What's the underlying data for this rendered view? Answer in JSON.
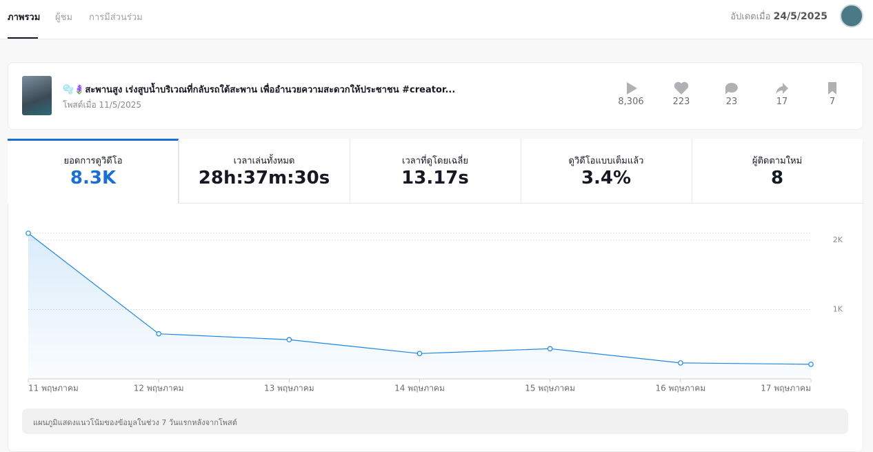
{
  "tabs": [
    "ภาพรวม",
    "ผู้ชม",
    "การมีส่วนร่วม"
  ],
  "header": {
    "update_label": "อัปเดตเมื่อ",
    "update_date": "24/5/2025"
  },
  "post": {
    "title": "🫧🪻สะพานสูง เร่งสูบน้ำบริเวณที่กลับรถใต้สะพาน เพื่ออำนวยความสะดวกให้ประชาชน #creator...",
    "posted": "โพสต์เมื่อ 11/5/2025",
    "stats": [
      "8,306",
      "223",
      "23",
      "17",
      "7"
    ]
  },
  "metrics": [
    {
      "label": "ยอดการดูวิดีโอ",
      "value": "8.3K"
    },
    {
      "label": "เวลาเล่นทั้งหมด",
      "value": "28h:37m:30s"
    },
    {
      "label": "เวลาที่ดูโดยเฉลี่ย",
      "value": "13.17s"
    },
    {
      "label": "ดูวิดีโอแบบเต็มแล้ว",
      "value": "3.4%"
    },
    {
      "label": "ผู้ติดตามใหม่",
      "value": "8"
    }
  ],
  "chart_data": {
    "type": "line",
    "categories": [
      "11 พฤษภาคม",
      "12 พฤษภาคม",
      "13 พฤษภาคม",
      "14 พฤษภาคม",
      "15 พฤษภาคม",
      "16 พฤษภาคม",
      "17 พฤษภาคม"
    ],
    "values": [
      2100,
      650,
      565,
      365,
      435,
      230,
      210
    ],
    "color": "#1a87e6",
    "ylim": [
      0,
      2100
    ],
    "yticks": [
      {
        "value": 1000,
        "label": "1K"
      },
      {
        "value": 2000,
        "label": "2K"
      }
    ],
    "grid": true,
    "note": "แผนภูมิแสดงแนวโน้มของข้อมูลในช่วง 7 วันแรกหลังจากโพสต์"
  }
}
